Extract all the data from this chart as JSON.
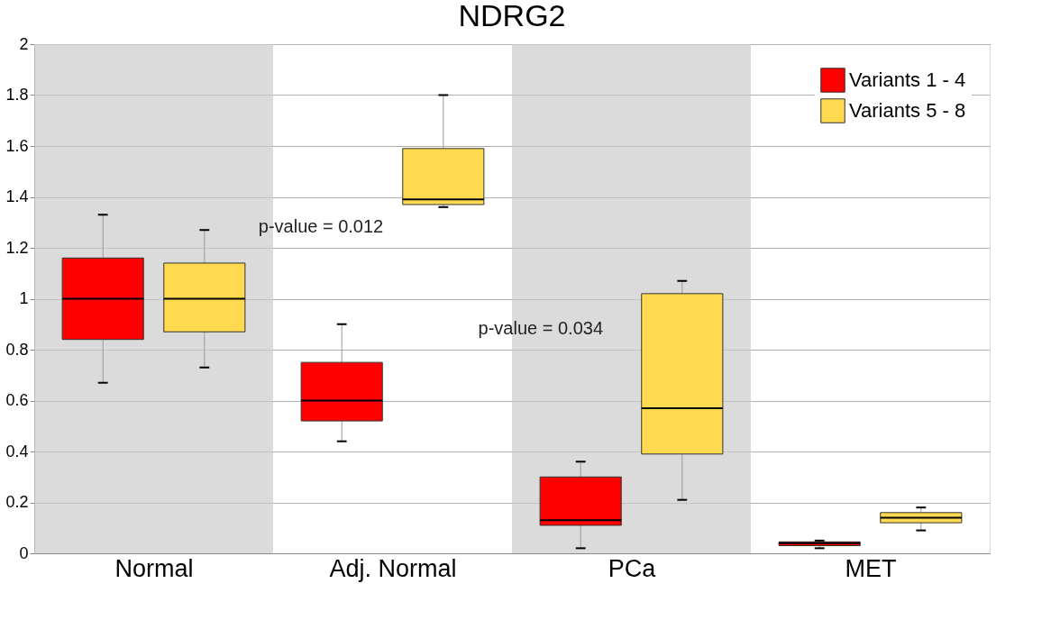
{
  "chart_data": {
    "type": "box",
    "title": "NDRG2",
    "categories": [
      "Normal",
      "Adj. Normal",
      "PCa",
      "MET"
    ],
    "series": [
      {
        "name": "Variants 1 - 4",
        "color": "#ff0000",
        "boxes": [
          {
            "low": 0.67,
            "q1": 0.84,
            "median": 1.0,
            "q3": 1.16,
            "high": 1.33
          },
          {
            "low": 0.44,
            "q1": 0.52,
            "median": 0.6,
            "q3": 0.75,
            "high": 0.9
          },
          {
            "low": 0.02,
            "q1": 0.11,
            "median": 0.13,
            "q3": 0.3,
            "high": 0.36
          },
          {
            "low": 0.02,
            "q1": 0.03,
            "median": 0.04,
            "q3": 0.045,
            "high": 0.05
          }
        ]
      },
      {
        "name": "Variants 5 - 8",
        "color": "#ffd950",
        "boxes": [
          {
            "low": 0.73,
            "q1": 0.87,
            "median": 1.0,
            "q3": 1.14,
            "high": 1.27
          },
          {
            "low": 1.36,
            "q1": 1.37,
            "median": 1.39,
            "q3": 1.59,
            "high": 1.8
          },
          {
            "low": 0.21,
            "q1": 0.39,
            "median": 0.57,
            "q3": 1.02,
            "high": 1.07
          },
          {
            "low": 0.09,
            "q1": 0.12,
            "median": 0.14,
            "q3": 0.16,
            "high": 0.18
          }
        ]
      }
    ],
    "ylim": [
      0,
      2
    ],
    "yticks": [
      0,
      0.2,
      0.4,
      0.6,
      0.8,
      1,
      1.2,
      1.4,
      1.6,
      1.8,
      2
    ],
    "grid": "y",
    "legend": "top right",
    "bands": [
      {
        "axis": "x",
        "from": "Normal",
        "to": "Normal",
        "color": "#cccccc"
      },
      {
        "axis": "x",
        "from": "PCa",
        "to": "PCa",
        "color": "#cccccc"
      }
    ],
    "annotations": [
      "p-value = 0.012",
      "p-value = 0.034"
    ]
  }
}
